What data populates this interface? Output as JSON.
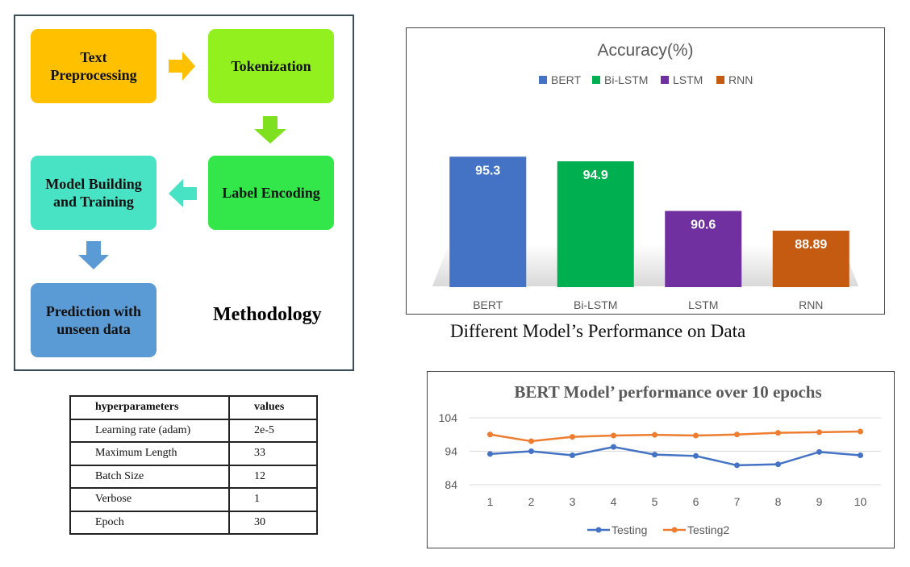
{
  "methodology": {
    "title": "Methodology",
    "steps": [
      {
        "label": "Text\nPreprocessing",
        "color": "#ffc000"
      },
      {
        "label": "Tokenization",
        "color": "#92f01f"
      },
      {
        "label": "Label Encoding",
        "color": "#33e64a"
      },
      {
        "label": "Model Building\nand Training",
        "color": "#48e3c4"
      },
      {
        "label": "Prediction with\nunseen data",
        "color": "#5b9bd5"
      }
    ],
    "arrow_colors": [
      "#ffc000",
      "#7ee01e",
      "#48e3c4",
      "#5b9bd5"
    ]
  },
  "hyperparameters": {
    "headers": [
      "hyperparameters",
      "values"
    ],
    "rows": [
      [
        "Learning rate (adam)",
        "2e-5"
      ],
      [
        "Maximum Length",
        "33"
      ],
      [
        "Batch Size",
        "12"
      ],
      [
        "Verbose",
        "1"
      ],
      [
        "Epoch",
        "30"
      ]
    ]
  },
  "chart_data": [
    {
      "type": "bar",
      "title": "Accuracy(%)",
      "caption": "Different Model’s Performance on Data",
      "categories": [
        "BERT",
        "Bi-LSTM",
        "LSTM",
        "RNN"
      ],
      "values": [
        95.3,
        94.9,
        90.6,
        88.89
      ],
      "value_labels": [
        "95.3",
        "94.9",
        "90.6",
        "88.89"
      ],
      "colors": [
        "#4472c4",
        "#00b050",
        "#7030a0",
        "#c55a11"
      ],
      "legend": [
        "BERT",
        "Bi-LSTM",
        "LSTM",
        "RNN"
      ],
      "legend_position": "top",
      "ylim": [
        84,
        100
      ],
      "grid": false
    },
    {
      "type": "line",
      "title": "BERT Model’ performance over 10 epochs",
      "x": [
        1,
        2,
        3,
        4,
        5,
        6,
        7,
        8,
        9,
        10
      ],
      "y_ticks": [
        84,
        94,
        104
      ],
      "ylim": [
        84,
        104
      ],
      "grid": true,
      "legend_position": "bottom",
      "series": [
        {
          "name": "Testing",
          "color": "#4472c4",
          "values": [
            93.2,
            94.0,
            92.8,
            95.3,
            93.0,
            92.6,
            89.8,
            90.1,
            93.8,
            92.8
          ]
        },
        {
          "name": "Testing2",
          "color": "#ed7d31",
          "values": [
            99.0,
            97.0,
            98.3,
            98.7,
            98.9,
            98.7,
            99.0,
            99.5,
            99.7,
            99.9
          ]
        }
      ]
    }
  ]
}
